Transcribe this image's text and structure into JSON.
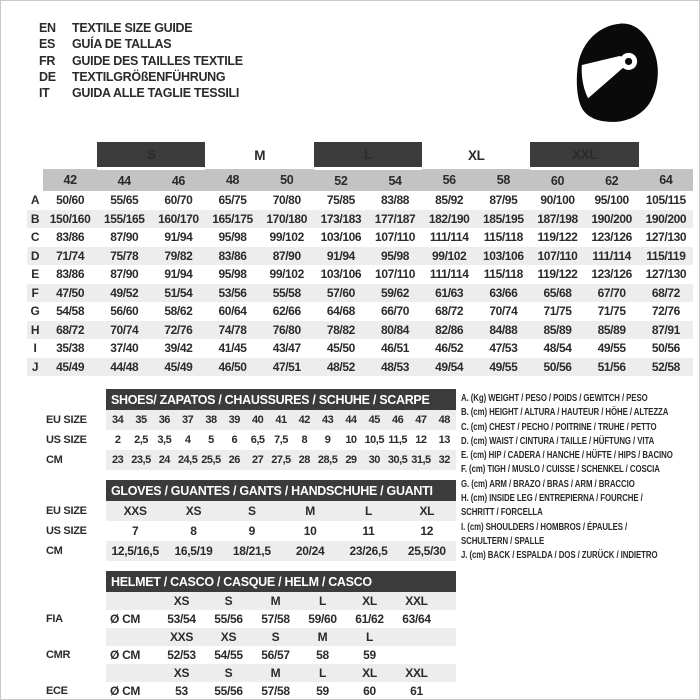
{
  "header": {
    "languages": [
      {
        "code": "EN",
        "title": "TEXTILE SIZE GUIDE"
      },
      {
        "code": "ES",
        "title": "GUÍA DE TALLAS"
      },
      {
        "code": "FR",
        "title": "GUIDE DES TAILLES TEXTILE"
      },
      {
        "code": "DE",
        "title": "TEXTILGRÖßENFÜHRUNG"
      },
      {
        "code": "IT",
        "title": "GUIDA ALLE TAGLIE TESSILI"
      }
    ],
    "icon": "racing-helmet"
  },
  "main_table": {
    "groups": [
      {
        "label": "S",
        "dark": true
      },
      {
        "label": "M",
        "dark": false
      },
      {
        "label": "L",
        "dark": true
      },
      {
        "label": "XL",
        "dark": false
      },
      {
        "label": "XXL",
        "dark": true
      }
    ],
    "sizes": [
      "42",
      "44",
      "46",
      "48",
      "50",
      "52",
      "54",
      "56",
      "58",
      "60",
      "62",
      "64"
    ],
    "rows": [
      {
        "label": "A",
        "values": [
          "50/60",
          "55/65",
          "60/70",
          "65/75",
          "70/80",
          "75/85",
          "83/88",
          "85/92",
          "87/95",
          "90/100",
          "95/100",
          "105/115"
        ]
      },
      {
        "label": "B",
        "values": [
          "150/160",
          "155/165",
          "160/170",
          "165/175",
          "170/180",
          "173/183",
          "177/187",
          "182/190",
          "185/195",
          "187/198",
          "190/200",
          "190/200"
        ]
      },
      {
        "label": "C",
        "values": [
          "83/86",
          "87/90",
          "91/94",
          "95/98",
          "99/102",
          "103/106",
          "107/110",
          "111/114",
          "115/118",
          "119/122",
          "123/126",
          "127/130"
        ]
      },
      {
        "label": "D",
        "values": [
          "71/74",
          "75/78",
          "79/82",
          "83/86",
          "87/90",
          "91/94",
          "95/98",
          "99/102",
          "103/106",
          "107/110",
          "111/114",
          "115/119"
        ]
      },
      {
        "label": "E",
        "values": [
          "83/86",
          "87/90",
          "91/94",
          "95/98",
          "99/102",
          "103/106",
          "107/110",
          "111/114",
          "115/118",
          "119/122",
          "123/126",
          "127/130"
        ]
      },
      {
        "label": "F",
        "values": [
          "47/50",
          "49/52",
          "51/54",
          "53/56",
          "55/58",
          "57/60",
          "59/62",
          "61/63",
          "63/66",
          "65/68",
          "67/70",
          "68/72"
        ]
      },
      {
        "label": "G",
        "values": [
          "54/58",
          "56/60",
          "58/62",
          "60/64",
          "62/66",
          "64/68",
          "66/70",
          "68/72",
          "70/74",
          "71/75",
          "71/75",
          "72/76"
        ]
      },
      {
        "label": "H",
        "values": [
          "68/72",
          "70/74",
          "72/76",
          "74/78",
          "76/80",
          "78/82",
          "80/84",
          "82/86",
          "84/88",
          "85/89",
          "85/89",
          "87/91"
        ]
      },
      {
        "label": "I",
        "values": [
          "35/38",
          "37/40",
          "39/42",
          "41/45",
          "43/47",
          "45/50",
          "46/51",
          "46/52",
          "47/53",
          "48/54",
          "49/55",
          "50/56"
        ]
      },
      {
        "label": "J",
        "values": [
          "45/49",
          "44/48",
          "45/49",
          "46/50",
          "47/51",
          "48/52",
          "48/53",
          "49/54",
          "49/55",
          "50/56",
          "51/56",
          "52/58"
        ]
      }
    ]
  },
  "shoes_table": {
    "title": "SHOES/ ZAPATOS / CHAUSSURES / SCHUHE / SCARPE",
    "rows": [
      {
        "label": "EU SIZE",
        "shaded": true,
        "values": [
          "34",
          "35",
          "36",
          "37",
          "38",
          "39",
          "40",
          "41",
          "42",
          "43",
          "44",
          "45",
          "46",
          "47",
          "48"
        ]
      },
      {
        "label": "US SIZE",
        "shaded": false,
        "values": [
          "2",
          "2,5",
          "3,5",
          "4",
          "5",
          "6",
          "6,5",
          "7,5",
          "8",
          "9",
          "10",
          "10,5",
          "11,5",
          "12",
          "13"
        ]
      },
      {
        "label": "CM",
        "shaded": true,
        "values": [
          "23",
          "23,5",
          "24",
          "24,5",
          "25,5",
          "26",
          "27",
          "27,5",
          "28",
          "28,5",
          "29",
          "30",
          "30,5",
          "31,5",
          "32"
        ]
      }
    ]
  },
  "gloves_table": {
    "title": "GLOVES / GUANTES / GANTS / HANDSCHUHE / GUANTI",
    "rows": [
      {
        "label": "EU SIZE",
        "shaded": true,
        "values": [
          "XXS",
          "XS",
          "S",
          "M",
          "L",
          "XL"
        ]
      },
      {
        "label": "US SIZE",
        "shaded": false,
        "values": [
          "7",
          "8",
          "9",
          "10",
          "11",
          "12"
        ]
      },
      {
        "label": "CM",
        "shaded": true,
        "values": [
          "12,5/16,5",
          "16,5/19",
          "18/21,5",
          "20/24",
          "23/26,5",
          "25,5/30"
        ]
      }
    ]
  },
  "helmet_table": {
    "title": "HELMET / CASCO / CASQUE / HELM / CASCO",
    "sections": [
      {
        "label": "FIA",
        "unit": "Ø CM",
        "sizes": [
          "XS",
          "S",
          "M",
          "L",
          "XL",
          "XXL"
        ],
        "values": [
          "53/54",
          "55/56",
          "57/58",
          "59/60",
          "61/62",
          "63/64"
        ]
      },
      {
        "label": "CMR",
        "unit": "Ø CM",
        "sizes": [
          "XXS",
          "XS",
          "S",
          "M",
          "L"
        ],
        "values": [
          "52/53",
          "54/55",
          "56/57",
          "58",
          "59"
        ]
      },
      {
        "label": "ECE",
        "unit": "Ø CM",
        "sizes": [
          "XS",
          "S",
          "M",
          "L",
          "XL",
          "XXL"
        ],
        "values": [
          "53",
          "55/56",
          "57/58",
          "59",
          "60",
          "61"
        ]
      }
    ]
  },
  "legend": {
    "items": [
      {
        "lines": [
          "A. (Kg) WEIGHT / PESO / POIDS / GEWITCH / PESO"
        ]
      },
      {
        "lines": [
          "B. (cm) HEIGHT / ALTURA / HAUTEUR / HÖHE / ALTEZZA"
        ]
      },
      {
        "lines": [
          "C. (cm) CHEST / PECHO / POITRINE / TRUHE / PETTO"
        ]
      },
      {
        "lines": [
          "D. (cm) WAIST / CINTURA / TAILLE / HÜFTUNG / VITA"
        ]
      },
      {
        "lines": [
          "E. (cm) HIP / CADERA / HANCHE / HÜFTE / HIPS /  BACINO"
        ]
      },
      {
        "lines": [
          "F. (cm) TIGH / MUSLO / CUISSE / SCHENKEL / COSCIA"
        ]
      },
      {
        "lines": [
          "G. (cm) ARM  / BRAZO / BRAS / ARM / BRACCIO"
        ]
      },
      {
        "lines": [
          "H. (cm) INSIDE LEG / ENTREPIERNA / FOURCHE /",
          "SCHRITT / FORCELLA"
        ]
      },
      {
        "lines": [
          "I.  (cm) SHOULDERS / HOMBROS / ÉPAULES /",
          "SCHULTERN / SPALLE"
        ]
      },
      {
        "lines": [
          "J. (cm) BACK / ESPALDA / DOS / ZURÜCK / INDIETRO"
        ]
      }
    ]
  },
  "colors": {
    "dark_band": "#3b3b3b",
    "size_band": "#c3c3c3",
    "stripe": "#ededed",
    "text": "#2b2b2b"
  }
}
